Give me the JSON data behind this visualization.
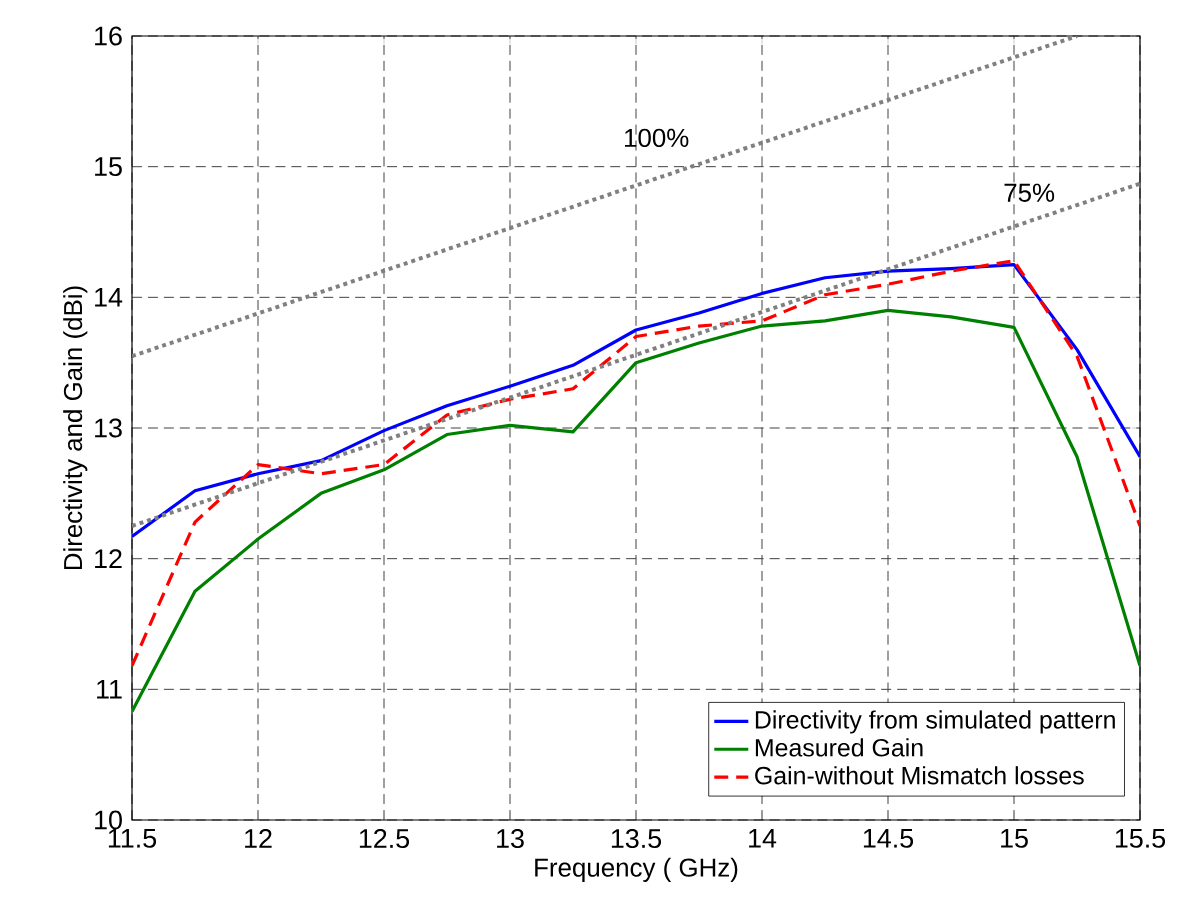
{
  "chart_data": {
    "type": "line",
    "xlabel": "Frequency ( GHz)",
    "ylabel": "Directivity and Gain (dBi)",
    "x": [
      11.5,
      11.75,
      12,
      12.25,
      12.5,
      12.75,
      13,
      13.25,
      13.5,
      13.75,
      14,
      14.25,
      14.5,
      14.75,
      15,
      15.25,
      15.5
    ],
    "series": [
      {
        "name": "Directivity from simulated pattern",
        "color": "#0000ff",
        "line_style": "solid",
        "values": [
          12.17,
          12.52,
          12.65,
          12.75,
          12.98,
          13.17,
          13.32,
          13.48,
          13.75,
          13.88,
          14.03,
          14.15,
          14.2,
          14.22,
          14.25,
          13.6,
          12.78
        ]
      },
      {
        "name": "Measured Gain",
        "color": "#008000",
        "line_style": "solid",
        "values": [
          10.83,
          11.75,
          12.15,
          12.5,
          12.68,
          12.95,
          13.02,
          12.97,
          13.5,
          13.65,
          13.78,
          13.82,
          13.9,
          13.85,
          13.77,
          12.78,
          11.18
        ]
      },
      {
        "name": "Gain-without Mismatch losses",
        "color": "#ff0000",
        "line_style": "dashed",
        "values": [
          11.18,
          12.28,
          12.72,
          12.65,
          12.72,
          13.1,
          13.22,
          13.3,
          13.7,
          13.78,
          13.82,
          14.02,
          14.1,
          14.2,
          14.28,
          13.55,
          12.25
        ]
      },
      {
        "color": "#808080",
        "line_style": "dotted",
        "x": [
          11.5,
          15.25
        ],
        "values": [
          13.55,
          16.0
        ]
      },
      {
        "color": "#808080",
        "line_style": "dotted",
        "x": [
          11.5,
          15.5
        ],
        "values": [
          12.25,
          14.87
        ]
      }
    ],
    "annotations": [
      "100%",
      "75%"
    ],
    "xlim": [
      11.5,
      15.5
    ],
    "ylim": [
      10,
      16
    ],
    "xticks": [
      11.5,
      12,
      12.5,
      13,
      13.5,
      14,
      14.5,
      15,
      15.5
    ],
    "yticks": [
      10,
      11,
      12,
      13,
      14,
      15,
      16
    ],
    "grid": true,
    "legend": "bottom right",
    "marker": "none"
  }
}
